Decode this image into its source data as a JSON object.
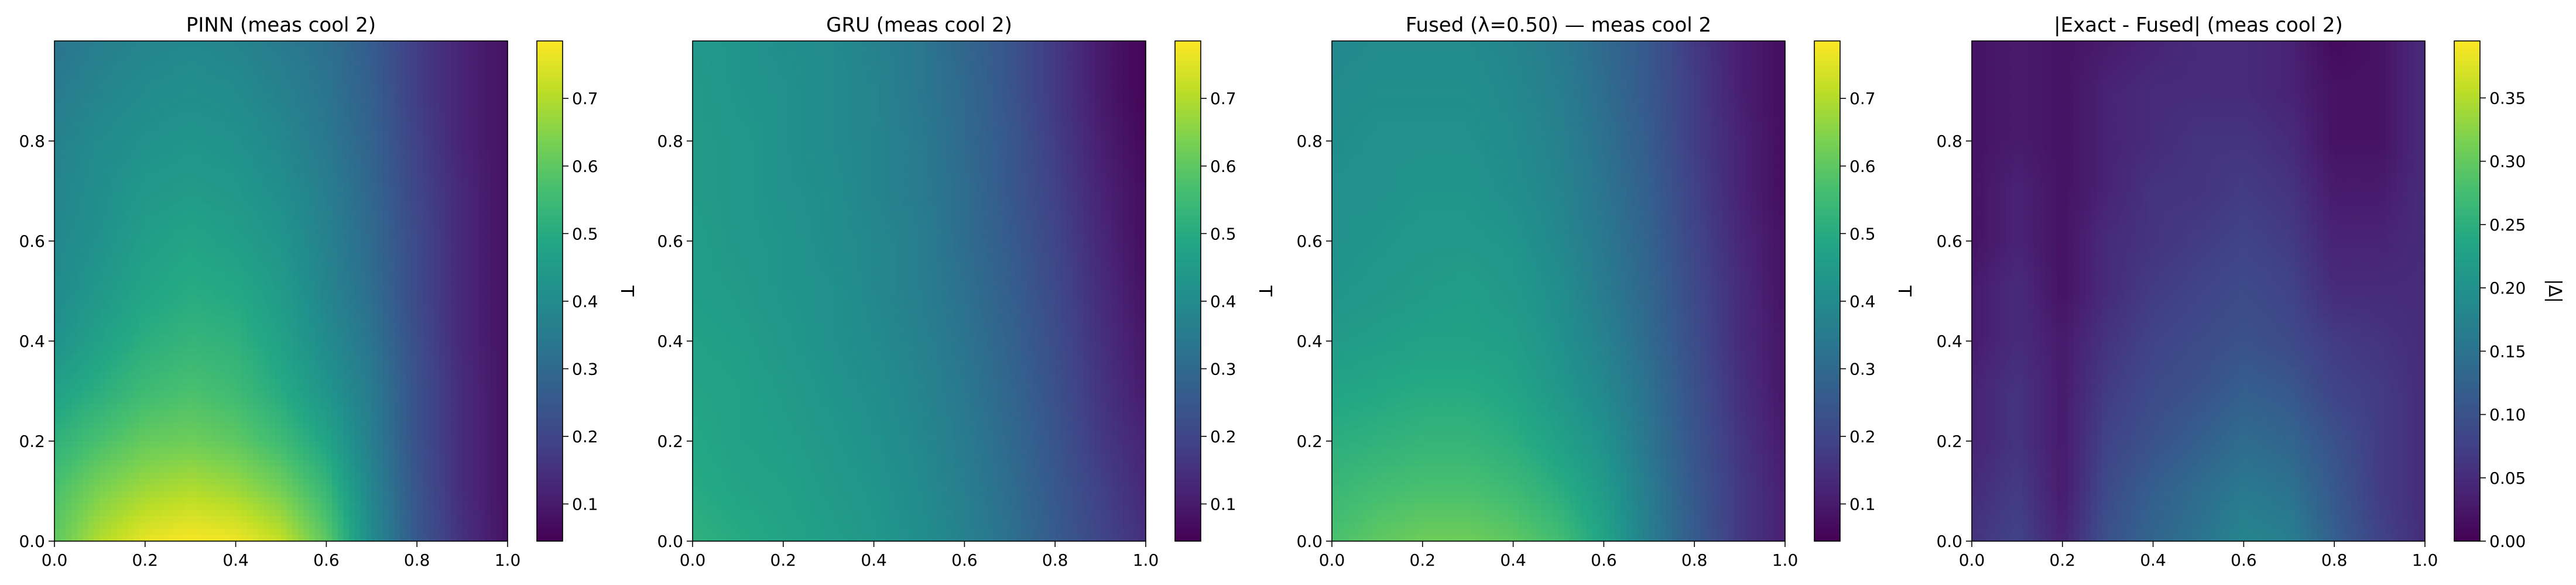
{
  "chart_data": [
    {
      "type": "heatmap",
      "title": "PINN (meas cool 2)",
      "xlim": [
        0,
        1
      ],
      "ylim": [
        0,
        1
      ],
      "x_ticks": [
        "0.0",
        "0.2",
        "0.4",
        "0.6",
        "0.8",
        "1.0"
      ],
      "y_ticks": [
        "0.0",
        "0.2",
        "0.4",
        "0.6",
        "0.8"
      ],
      "colormap": "viridis",
      "colorbar_label": "T",
      "colorbar_range": [
        0.045,
        0.785
      ],
      "colorbar_ticks": [
        "0.1",
        "0.2",
        "0.3",
        "0.4",
        "0.5",
        "0.6",
        "0.7"
      ],
      "field": {
        "x": [
          0,
          0.1,
          0.2,
          0.3,
          0.4,
          0.5,
          0.6,
          0.7,
          0.8,
          0.9,
          1.0
        ],
        "y": [
          0,
          0.1,
          0.2,
          0.3,
          0.4,
          0.5,
          0.6,
          0.7,
          0.8,
          0.9,
          1.0
        ],
        "values": [
          [
            0.6,
            0.7,
            0.76,
            0.78,
            0.77,
            0.72,
            0.6,
            0.4,
            0.25,
            0.15,
            0.08
          ],
          [
            0.57,
            0.64,
            0.68,
            0.7,
            0.68,
            0.63,
            0.54,
            0.38,
            0.24,
            0.14,
            0.08
          ],
          [
            0.52,
            0.57,
            0.61,
            0.62,
            0.6,
            0.55,
            0.48,
            0.36,
            0.23,
            0.14,
            0.08
          ],
          [
            0.47,
            0.51,
            0.55,
            0.57,
            0.55,
            0.5,
            0.43,
            0.35,
            0.23,
            0.14,
            0.08
          ],
          [
            0.42,
            0.47,
            0.51,
            0.53,
            0.52,
            0.47,
            0.4,
            0.33,
            0.22,
            0.13,
            0.08
          ],
          [
            0.4,
            0.44,
            0.48,
            0.5,
            0.49,
            0.45,
            0.38,
            0.31,
            0.21,
            0.13,
            0.08
          ],
          [
            0.39,
            0.42,
            0.46,
            0.48,
            0.46,
            0.43,
            0.37,
            0.3,
            0.21,
            0.13,
            0.08
          ],
          [
            0.38,
            0.41,
            0.44,
            0.45,
            0.44,
            0.41,
            0.36,
            0.29,
            0.2,
            0.13,
            0.08
          ],
          [
            0.37,
            0.4,
            0.42,
            0.43,
            0.42,
            0.39,
            0.34,
            0.28,
            0.19,
            0.12,
            0.08
          ],
          [
            0.35,
            0.38,
            0.4,
            0.41,
            0.4,
            0.37,
            0.33,
            0.27,
            0.18,
            0.12,
            0.08
          ],
          [
            0.33,
            0.36,
            0.38,
            0.39,
            0.38,
            0.35,
            0.32,
            0.26,
            0.18,
            0.12,
            0.08
          ]
        ]
      }
    },
    {
      "type": "heatmap",
      "title": "GRU (meas cool 2)",
      "xlim": [
        0,
        1
      ],
      "ylim": [
        0,
        1
      ],
      "x_ticks": [
        "0.0",
        "0.2",
        "0.4",
        "0.6",
        "0.8",
        "1.0"
      ],
      "y_ticks": [
        "0.0",
        "0.2",
        "0.4",
        "0.6",
        "0.8"
      ],
      "colormap": "viridis",
      "colorbar_label": "T",
      "colorbar_range": [
        0.045,
        0.785
      ],
      "colorbar_ticks": [
        "0.1",
        "0.2",
        "0.3",
        "0.4",
        "0.5",
        "0.6",
        "0.7"
      ],
      "field": {
        "x": [
          0,
          0.1,
          0.2,
          0.3,
          0.4,
          0.5,
          0.6,
          0.7,
          0.8,
          0.9,
          1.0
        ],
        "y": [
          0,
          0.1,
          0.2,
          0.3,
          0.4,
          0.5,
          0.6,
          0.7,
          0.8,
          0.9,
          1.0
        ],
        "values": [
          [
            0.52,
            0.5,
            0.48,
            0.46,
            0.44,
            0.41,
            0.37,
            0.32,
            0.26,
            0.2,
            0.15
          ],
          [
            0.5,
            0.48,
            0.47,
            0.45,
            0.43,
            0.4,
            0.36,
            0.31,
            0.25,
            0.19,
            0.13
          ],
          [
            0.49,
            0.47,
            0.46,
            0.44,
            0.42,
            0.39,
            0.35,
            0.3,
            0.24,
            0.17,
            0.12
          ],
          [
            0.48,
            0.47,
            0.45,
            0.43,
            0.41,
            0.38,
            0.34,
            0.29,
            0.23,
            0.16,
            0.1
          ],
          [
            0.47,
            0.46,
            0.44,
            0.42,
            0.4,
            0.37,
            0.33,
            0.28,
            0.22,
            0.15,
            0.09
          ],
          [
            0.46,
            0.45,
            0.43,
            0.42,
            0.39,
            0.36,
            0.32,
            0.27,
            0.21,
            0.14,
            0.08
          ],
          [
            0.46,
            0.44,
            0.43,
            0.41,
            0.39,
            0.36,
            0.31,
            0.26,
            0.2,
            0.13,
            0.07
          ],
          [
            0.45,
            0.44,
            0.42,
            0.41,
            0.38,
            0.35,
            0.31,
            0.25,
            0.19,
            0.12,
            0.07
          ],
          [
            0.45,
            0.44,
            0.42,
            0.4,
            0.38,
            0.35,
            0.3,
            0.25,
            0.18,
            0.11,
            0.06
          ],
          [
            0.45,
            0.43,
            0.42,
            0.4,
            0.38,
            0.34,
            0.3,
            0.24,
            0.17,
            0.1,
            0.05
          ],
          [
            0.44,
            0.43,
            0.41,
            0.4,
            0.37,
            0.34,
            0.29,
            0.24,
            0.17,
            0.1,
            0.05
          ]
        ]
      }
    },
    {
      "type": "heatmap",
      "title": "Fused (λ=0.50) — meas cool 2",
      "xlim": [
        0,
        1
      ],
      "ylim": [
        0,
        1
      ],
      "x_ticks": [
        "0.0",
        "0.2",
        "0.4",
        "0.6",
        "0.8",
        "1.0"
      ],
      "y_ticks": [
        "0.0",
        "0.2",
        "0.4",
        "0.6",
        "0.8"
      ],
      "colormap": "viridis",
      "colorbar_label": "T",
      "colorbar_range": [
        0.045,
        0.785
      ],
      "colorbar_ticks": [
        "0.1",
        "0.2",
        "0.3",
        "0.4",
        "0.5",
        "0.6",
        "0.7"
      ],
      "field": {
        "x": [
          0,
          0.1,
          0.2,
          0.3,
          0.4,
          0.5,
          0.6,
          0.7,
          0.8,
          0.9,
          1.0
        ],
        "y": [
          0,
          0.1,
          0.2,
          0.3,
          0.4,
          0.5,
          0.6,
          0.7,
          0.8,
          0.9,
          1.0
        ],
        "values": [
          [
            0.57,
            0.6,
            0.62,
            0.62,
            0.6,
            0.56,
            0.48,
            0.36,
            0.26,
            0.17,
            0.11
          ],
          [
            0.54,
            0.56,
            0.57,
            0.57,
            0.55,
            0.51,
            0.45,
            0.35,
            0.25,
            0.17,
            0.11
          ],
          [
            0.51,
            0.52,
            0.53,
            0.53,
            0.51,
            0.47,
            0.42,
            0.33,
            0.24,
            0.16,
            0.1
          ],
          [
            0.48,
            0.49,
            0.5,
            0.5,
            0.48,
            0.44,
            0.39,
            0.32,
            0.23,
            0.15,
            0.09
          ],
          [
            0.45,
            0.46,
            0.47,
            0.47,
            0.46,
            0.42,
            0.37,
            0.3,
            0.22,
            0.14,
            0.09
          ],
          [
            0.43,
            0.44,
            0.45,
            0.46,
            0.44,
            0.41,
            0.35,
            0.29,
            0.21,
            0.14,
            0.08
          ],
          [
            0.42,
            0.43,
            0.44,
            0.44,
            0.43,
            0.39,
            0.34,
            0.28,
            0.2,
            0.13,
            0.08
          ],
          [
            0.42,
            0.42,
            0.43,
            0.43,
            0.41,
            0.38,
            0.33,
            0.27,
            0.19,
            0.12,
            0.07
          ],
          [
            0.41,
            0.42,
            0.42,
            0.42,
            0.4,
            0.37,
            0.32,
            0.26,
            0.18,
            0.12,
            0.07
          ],
          [
            0.4,
            0.41,
            0.41,
            0.41,
            0.39,
            0.36,
            0.31,
            0.25,
            0.18,
            0.11,
            0.07
          ],
          [
            0.39,
            0.4,
            0.4,
            0.4,
            0.38,
            0.35,
            0.3,
            0.25,
            0.17,
            0.11,
            0.07
          ]
        ]
      }
    },
    {
      "type": "heatmap",
      "title": "|Exact - Fused| (meas cool 2)",
      "xlim": [
        0,
        1
      ],
      "ylim": [
        0,
        1
      ],
      "x_ticks": [
        "0.0",
        "0.2",
        "0.4",
        "0.6",
        "0.8",
        "1.0"
      ],
      "y_ticks": [
        "0.0",
        "0.2",
        "0.4",
        "0.6",
        "0.8"
      ],
      "colormap": "viridis",
      "colorbar_label": "|Δ|",
      "colorbar_range": [
        0.0,
        0.395
      ],
      "colorbar_ticks": [
        "0.00",
        "0.05",
        "0.10",
        "0.15",
        "0.20",
        "0.25",
        "0.30",
        "0.35"
      ],
      "field": {
        "x": [
          0,
          0.1,
          0.2,
          0.3,
          0.4,
          0.5,
          0.6,
          0.7,
          0.8,
          0.9,
          1.0
        ],
        "y": [
          0,
          0.1,
          0.2,
          0.3,
          0.4,
          0.5,
          0.6,
          0.7,
          0.8,
          0.9,
          1.0
        ],
        "values": [
          [
            0.06,
            0.08,
            0.04,
            0.1,
            0.13,
            0.15,
            0.18,
            0.17,
            0.12,
            0.08,
            0.05
          ],
          [
            0.05,
            0.07,
            0.03,
            0.09,
            0.12,
            0.14,
            0.16,
            0.15,
            0.11,
            0.07,
            0.05
          ],
          [
            0.04,
            0.06,
            0.03,
            0.08,
            0.1,
            0.12,
            0.14,
            0.13,
            0.1,
            0.07,
            0.05
          ],
          [
            0.04,
            0.06,
            0.03,
            0.07,
            0.09,
            0.1,
            0.12,
            0.11,
            0.08,
            0.07,
            0.05
          ],
          [
            0.03,
            0.05,
            0.03,
            0.06,
            0.08,
            0.09,
            0.1,
            0.09,
            0.07,
            0.06,
            0.05
          ],
          [
            0.03,
            0.05,
            0.02,
            0.05,
            0.07,
            0.08,
            0.09,
            0.08,
            0.05,
            0.05,
            0.05
          ],
          [
            0.02,
            0.04,
            0.02,
            0.05,
            0.06,
            0.07,
            0.08,
            0.07,
            0.04,
            0.04,
            0.05
          ],
          [
            0.02,
            0.04,
            0.02,
            0.04,
            0.06,
            0.06,
            0.07,
            0.06,
            0.03,
            0.03,
            0.05
          ],
          [
            0.02,
            0.03,
            0.02,
            0.04,
            0.05,
            0.06,
            0.06,
            0.05,
            0.02,
            0.02,
            0.05
          ],
          [
            0.02,
            0.03,
            0.02,
            0.04,
            0.05,
            0.05,
            0.05,
            0.04,
            0.02,
            0.02,
            0.05
          ],
          [
            0.02,
            0.03,
            0.02,
            0.03,
            0.04,
            0.05,
            0.05,
            0.04,
            0.01,
            0.02,
            0.05
          ]
        ]
      }
    }
  ]
}
